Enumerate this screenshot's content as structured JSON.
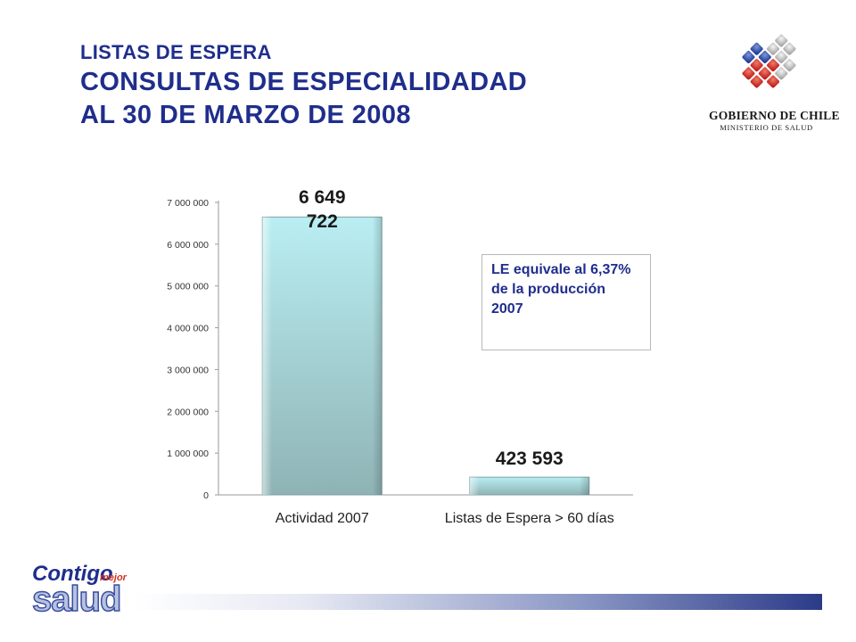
{
  "header": {
    "line1": "LISTAS DE ESPERA",
    "line2": "CONSULTAS DE ESPECIALIDADAD",
    "line3": "AL 30 DE MARZO DE 2008"
  },
  "logo": {
    "name": "GOBIERNO DE CHILE",
    "ministry": "MINISTERIO DE SALUD"
  },
  "note": "LE equivale al 6,37% de la producción 2007",
  "footer_logo": {
    "contigo": "Contigo",
    "mejor": "mejor",
    "salud": "salud"
  },
  "colors": {
    "title": "#1f2e8c",
    "bar_top": "#b9eef2",
    "bar_bottom": "#8fb3b5",
    "footer_dark": "#2b3b88"
  },
  "chart_data": {
    "type": "bar",
    "categories": [
      "Actividad 2007",
      "Listas de Espera > 60 días"
    ],
    "values": [
      6649722,
      423593
    ],
    "data_labels": [
      [
        "6 649",
        "722"
      ],
      [
        "423 593"
      ]
    ],
    "y_ticks": [
      "0",
      "1 000 000",
      "2 000 000",
      "3 000 000",
      "4 000 000",
      "5 000 000",
      "6 000 000",
      "7 000 000"
    ],
    "ylim": [
      0,
      7000000
    ],
    "grid": false,
    "legend": "none"
  }
}
